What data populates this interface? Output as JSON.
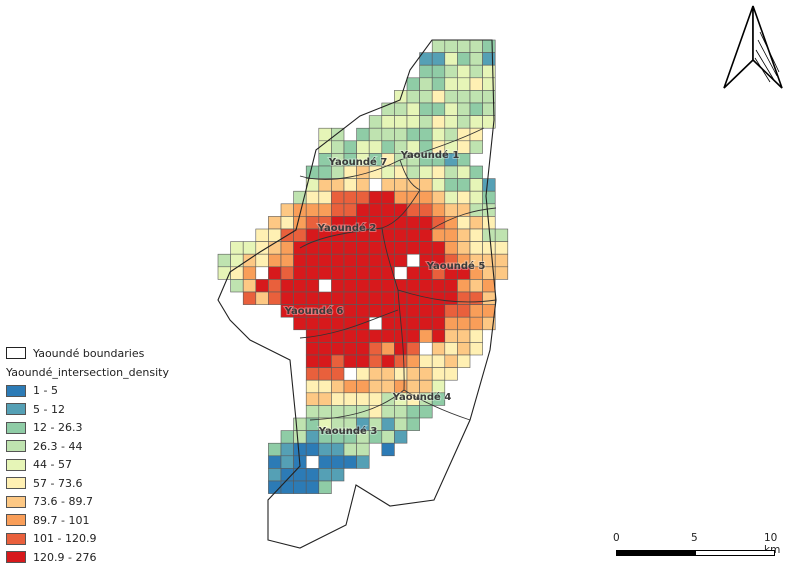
{
  "legend": {
    "boundary_label": "Yaoundé boundaries",
    "title": "Yaoundé_intersection_density",
    "classes": [
      {
        "label": "1 - 5",
        "color": "#2c7bb6"
      },
      {
        "label": "5 - 12",
        "color": "#55a0b5"
      },
      {
        "label": "12 - 26.3",
        "color": "#8fcca6"
      },
      {
        "label": "26.3 - 44",
        "color": "#bfe3b0"
      },
      {
        "label": "44 - 57",
        "color": "#e6f5b7"
      },
      {
        "label": "57 - 73.6",
        "color": "#fff0b3"
      },
      {
        "label": "73.6 - 89.7",
        "color": "#fdc884"
      },
      {
        "label": "89.7 - 101",
        "color": "#f99e59"
      },
      {
        "label": "101 - 120.9",
        "color": "#e9603c"
      },
      {
        "label": "120.9 - 276",
        "color": "#d7191c"
      }
    ]
  },
  "districts": [
    "Yaoundé 1",
    "Yaoundé 2",
    "Yaoundé 3",
    "Yaoundé 4",
    "Yaoundé 5",
    "Yaoundé 6",
    "Yaoundé 7"
  ],
  "scale_bar": {
    "labels": [
      "0",
      "5",
      "10 km"
    ]
  },
  "north_arrow": {
    "icon": "north-arrow-icon"
  }
}
